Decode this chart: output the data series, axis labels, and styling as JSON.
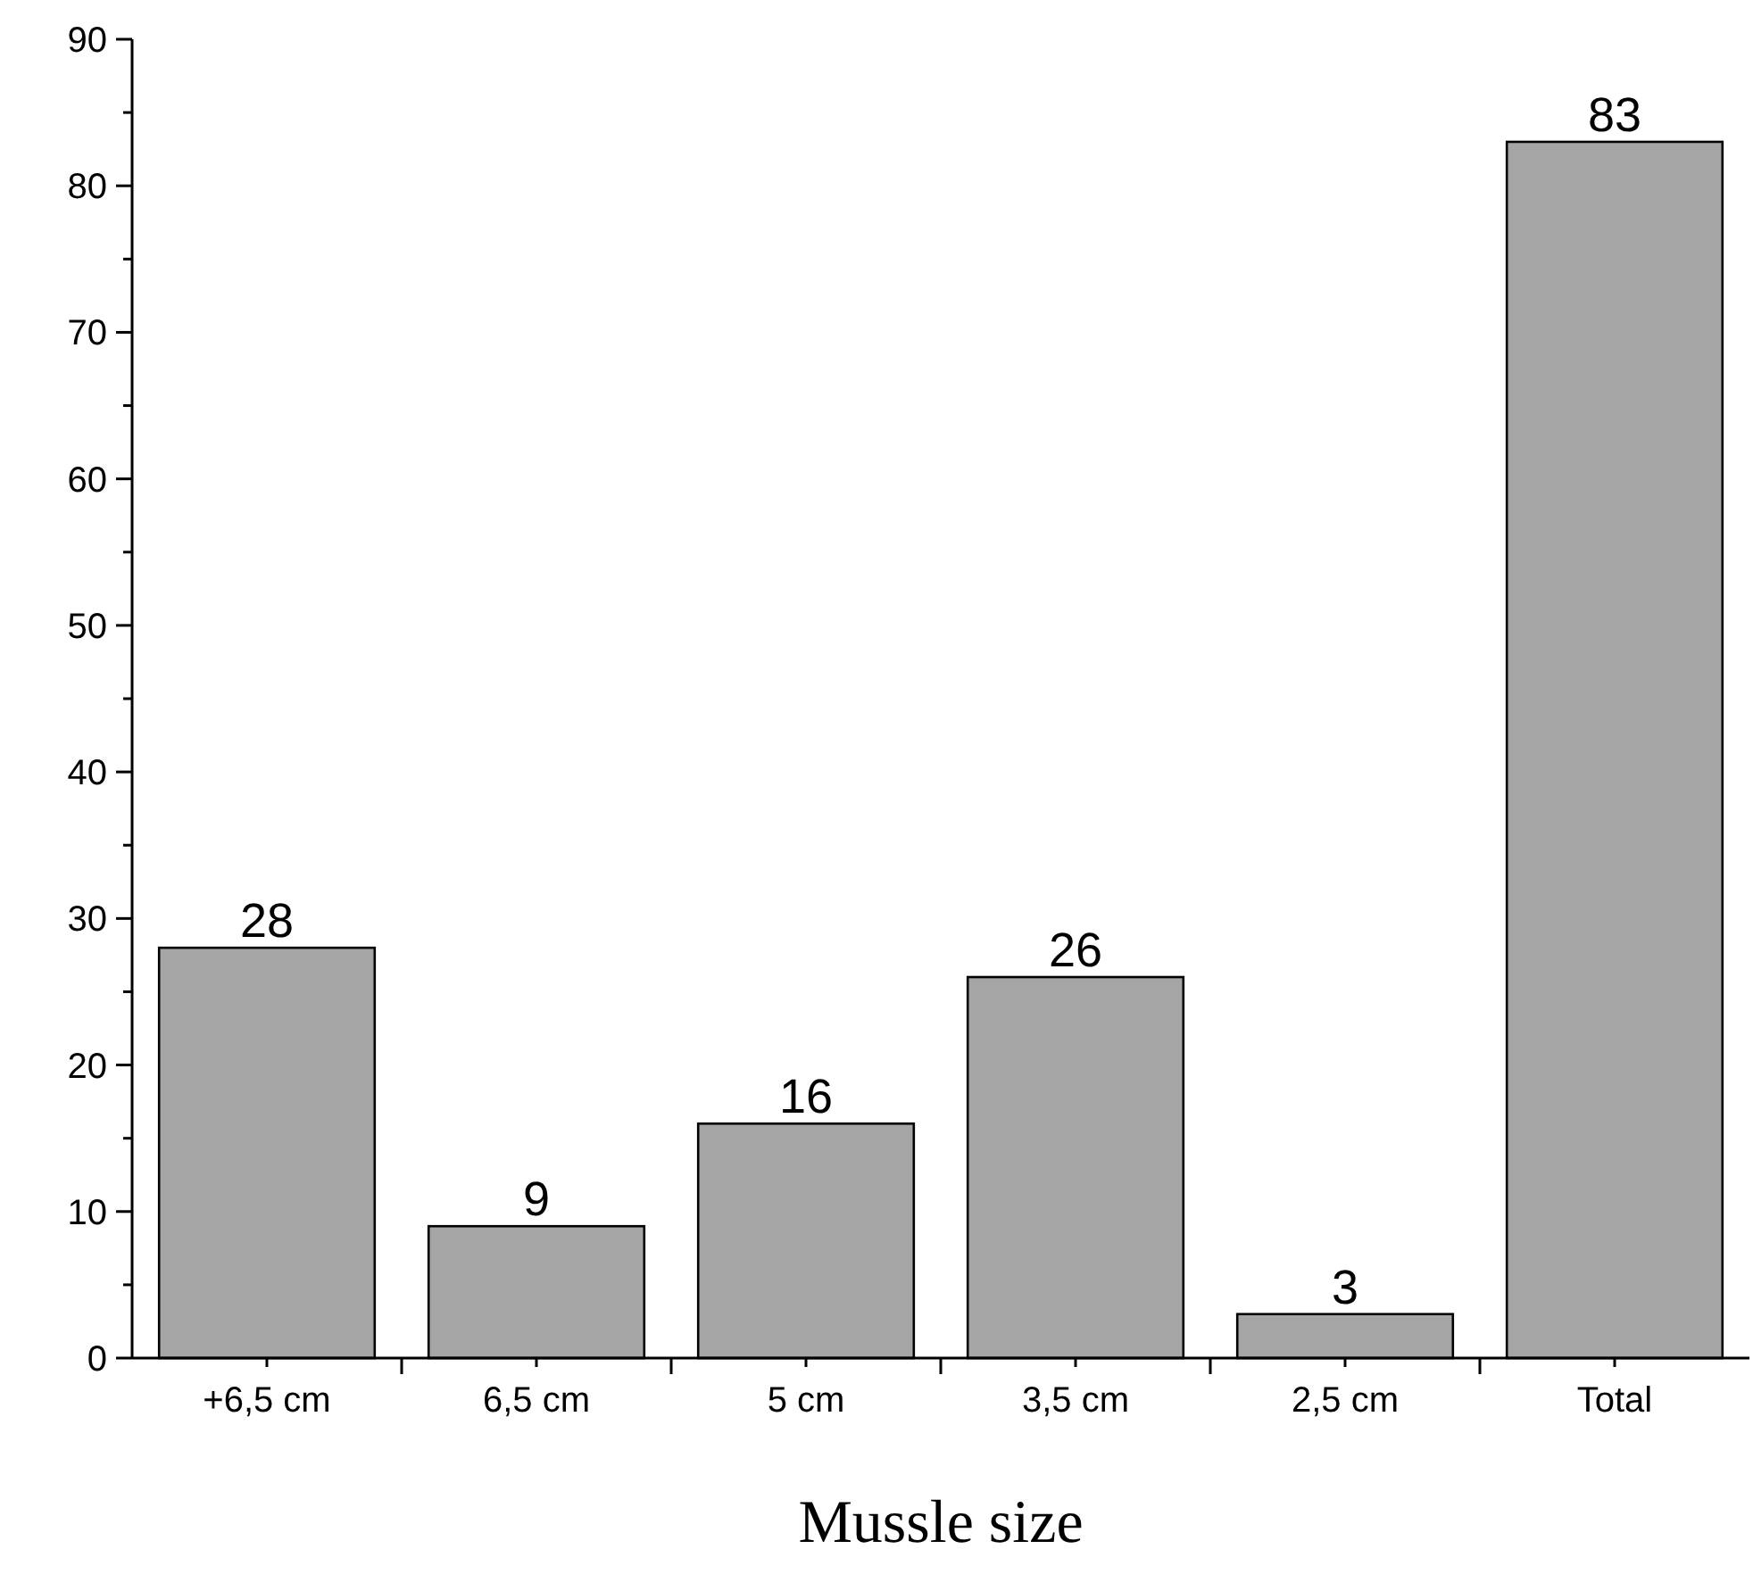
{
  "chart_data": {
    "type": "bar",
    "xlabel": "Mussle size",
    "categories": [
      "+6,5 cm",
      "6,5 cm",
      "5 cm",
      "3,5 cm",
      "2,5 cm",
      "Total"
    ],
    "values": [
      28,
      9,
      16,
      26,
      3,
      83
    ],
    "color": "#a5a5a5",
    "data_labels": true,
    "ylim": [
      0,
      90
    ],
    "yticks": [
      0,
      {
        "value": 5,
        "label": null
      },
      10,
      {
        "value": 15,
        "label": null
      },
      20,
      {
        "value": 25,
        "label": null
      },
      30,
      {
        "value": 35,
        "label": null
      },
      40,
      {
        "value": 45,
        "label": null
      },
      50,
      {
        "value": 55,
        "label": null
      },
      60,
      {
        "value": 65,
        "label": null
      },
      70,
      {
        "value": 75,
        "label": null
      },
      80,
      {
        "value": 85,
        "label": null
      },
      90
    ],
    "grid": false
  }
}
